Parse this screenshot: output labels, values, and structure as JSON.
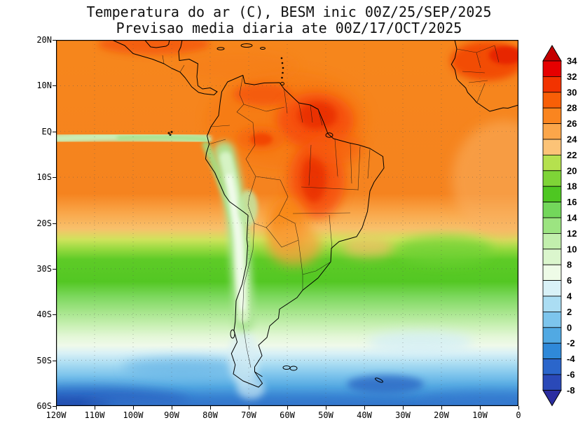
{
  "title": {
    "line1": "Temperatura do ar (C), BESM inic 00Z/25/SEP/2025",
    "line2": "Previsao media diaria ate 00Z/17/OCT/2025"
  },
  "chart_data": {
    "type": "heatmap",
    "title": "Temperatura do ar (C), BESM inic 00Z/25/SEP/2025",
    "subtitle": "Previsao media diaria ate 00Z/17/OCT/2025",
    "variable": "Air temperature (C), daily mean forecast",
    "region": "South America and adjacent oceans",
    "projection": "latlon",
    "lon_range": [
      "120W",
      "0"
    ],
    "lat_range": [
      "60S",
      "20N"
    ],
    "grid": "dotted graticule every 10 degrees",
    "x_axis": {
      "ticks": [
        "120W",
        "110W",
        "100W",
        "90W",
        "80W",
        "70W",
        "60W",
        "50W",
        "40W",
        "30W",
        "20W",
        "10W",
        "0"
      ]
    },
    "y_axis": {
      "ticks": [
        "20N",
        "10N",
        "EQ",
        "10S",
        "20S",
        "30S",
        "40S",
        "50S",
        "60S"
      ]
    },
    "colorbar": {
      "units": "C",
      "position": "right",
      "tick_labels": [
        34,
        32,
        30,
        28,
        26,
        24,
        22,
        20,
        18,
        16,
        14,
        12,
        10,
        8,
        6,
        4,
        2,
        0,
        -2,
        -4,
        -6,
        -8
      ],
      "segment_colors_top_to_bottom": [
        "#c40000",
        "#e60000",
        "#f23300",
        "#f85f07",
        "#fa851f",
        "#fba64a",
        "#fcc377",
        "#b5e14e",
        "#7ed437",
        "#4ec722",
        "#73d75b",
        "#9ce481",
        "#c2efad",
        "#dbf6cd",
        "#eefbe7",
        "#d9f1f7",
        "#abddf3",
        "#7dc5ed",
        "#51a9e3",
        "#2f89d9",
        "#2b66cb",
        "#2a49b8",
        "#2b2da0"
      ],
      "over_color": "#c40000",
      "under_color": "#2b2da0"
    },
    "zonal_mean_estimates": [
      {
        "lat": "20N",
        "temp_c": 27
      },
      {
        "lat": "10N",
        "temp_c": 27
      },
      {
        "lat": "EQ",
        "temp_c": 27
      },
      {
        "lat": "10S",
        "temp_c": 27
      },
      {
        "lat": "20S",
        "temp_c": 24
      },
      {
        "lat": "30S",
        "temp_c": 17
      },
      {
        "lat": "40S",
        "temp_c": 9
      },
      {
        "lat": "50S",
        "temp_c": 3
      },
      {
        "lat": "60S",
        "temp_c": -2
      }
    ],
    "features": [
      "Warm cores of 30-34 C over interior Brazil (Para / Mato Grosso / Tocantins)",
      "Warm patch of 30-34 C over West Africa in the top-right corner",
      "Cool tongue of 0-12 C along the Andes from Peru south to Patagonia",
      "Cool equatorial Pacific tongue near 20-24 C extending west from the Peru coast",
      "Nearly zonal bands cooling southward, below -4 C near 60S in the southwest corner"
    ]
  }
}
